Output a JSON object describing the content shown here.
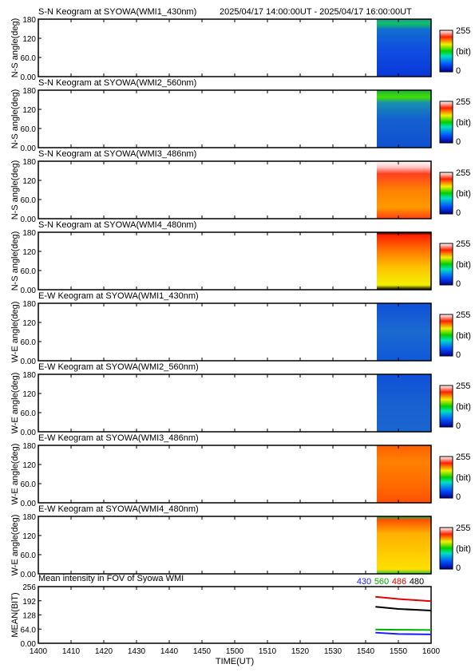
{
  "header": {
    "time_range": "2025/04/17 14:00:00UT - 2025/04/17 16:00:00UT"
  },
  "colorbar": {
    "max_label": "255",
    "unit_label": "(bit)",
    "min_label": "0"
  },
  "panels": [
    {
      "title": "S-N Keogram at SYOWA(WMI1_430nm)",
      "ylabel": "N-S angle(deg)",
      "profile": "blue_top_green"
    },
    {
      "title": "S-N Keogram at SYOWA(WMI2_560nm)",
      "ylabel": "N-S angle(deg)",
      "profile": "blue_top_green2"
    },
    {
      "title": "S-N Keogram at SYOWA(WMI3_486nm)",
      "ylabel": "N-S angle(deg)",
      "profile": "red_top_white"
    },
    {
      "title": "S-N Keogram at SYOWA(WMI4_480nm)",
      "ylabel": "N-S angle(deg)",
      "profile": "yellow_red"
    },
    {
      "title": "E-W Keogram at SYOWA(WMI1_430nm)",
      "ylabel": "W-E angle(deg)",
      "profile": "blue_flat"
    },
    {
      "title": "E-W Keogram at SYOWA(WMI2_560nm)",
      "ylabel": "W-E angle(deg)",
      "profile": "blue_flat2"
    },
    {
      "title": "E-W Keogram at SYOWA(WMI3_486nm)",
      "ylabel": "W-E angle(deg)",
      "profile": "orange_red"
    },
    {
      "title": "E-W Keogram at SYOWA(WMI4_480nm)",
      "ylabel": "W-E angle(deg)",
      "profile": "yellow_band"
    }
  ],
  "chart_data": {
    "type": "line",
    "title": "Mean intensity in FOV of Syowa WMI",
    "xlabel": "TIME(UT)",
    "ylabel": "MEAN(BIT)",
    "x_ticks": [
      "1400",
      "1410",
      "1420",
      "1430",
      "1440",
      "1450",
      "1500",
      "1510",
      "1520",
      "1530",
      "1540",
      "1550",
      "1600"
    ],
    "keogram_y_ticks": [
      "180",
      "120",
      "60.0",
      "0.00"
    ],
    "keogram_ylim": [
      0,
      180
    ],
    "y_ticks": [
      "256",
      "192",
      "128",
      "64.0",
      "0.00"
    ],
    "ylim": [
      0,
      256
    ],
    "data_start": "1543",
    "legend": [
      {
        "label": "430",
        "color": "#1a1aff"
      },
      {
        "label": "560",
        "color": "#00b000"
      },
      {
        "label": "486",
        "color": "#e00000"
      },
      {
        "label": "480",
        "color": "#000000"
      }
    ],
    "series": [
      {
        "name": "486",
        "color": "#e00000",
        "x": [
          "1543",
          "1550",
          "1600"
        ],
        "values": [
          210,
          200,
          190
        ]
      },
      {
        "name": "480",
        "color": "#000000",
        "x": [
          "1543",
          "1550",
          "1600"
        ],
        "values": [
          165,
          155,
          148
        ]
      },
      {
        "name": "560",
        "color": "#00b000",
        "x": [
          "1543",
          "1550",
          "1600"
        ],
        "values": [
          62,
          61,
          60
        ]
      },
      {
        "name": "430",
        "color": "#1a1aff",
        "x": [
          "1543",
          "1550",
          "1600"
        ],
        "values": [
          48,
          42,
          40
        ]
      }
    ]
  }
}
